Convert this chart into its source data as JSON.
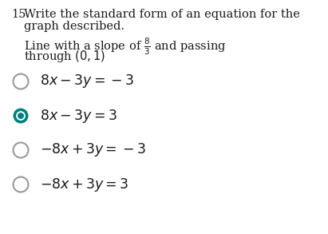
{
  "question_number": "15.",
  "question_line1": "Write the standard form of an equation for the",
  "question_line2": "graph described.",
  "desc_line1": "Line with a slope of $\\frac{8}{3}$ and passing",
  "desc_line2": "through $(0, 1)$",
  "options": [
    {
      "label": "$8x - 3y = -3$",
      "selected": false
    },
    {
      "label": "$8x - 3y = 3$",
      "selected": true
    },
    {
      "label": "$-8x + 3y = -3$",
      "selected": false
    },
    {
      "label": "$-8x + 3y = 3$",
      "selected": false
    }
  ],
  "selected_color": "#008080",
  "unselected_color": "#999999",
  "text_color": "#1a1a1a",
  "bg_color": "#ffffff",
  "font_size_question": 10.5,
  "font_size_desc": 10.5,
  "font_size_options": 12.5
}
